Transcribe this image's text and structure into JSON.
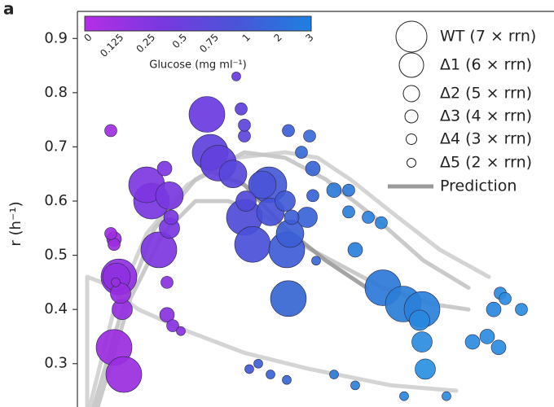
{
  "chart_data": {
    "type": "scatter",
    "panel_label": "a",
    "y_label": "r (h⁻¹)",
    "xlim": [
      0,
      585
    ],
    "ylim": [
      0.22,
      0.95
    ],
    "yticks": [
      0.3,
      0.4,
      0.5,
      0.6,
      0.7,
      0.8,
      0.9
    ],
    "colorbar": {
      "label": "Glucose (mg ml⁻¹)",
      "ticks": [
        "0",
        "0.125",
        "0.25",
        "0.5",
        "0.75",
        "1",
        "2",
        "3"
      ],
      "colors": [
        "#b42ee6",
        "#7a38e0",
        "#4a54d8",
        "#1e80e0"
      ]
    },
    "series": [
      {
        "name": "WT (7 × rrn)",
        "x": [
          159,
          163,
          91,
          100,
          205,
          215,
          257,
          259,
          375,
          400,
          423,
          51,
          45,
          57,
          235,
          85,
          173
        ],
        "values": [
          0.76,
          0.69,
          0.6,
          0.51,
          0.57,
          0.52,
          0.51,
          0.42,
          0.44,
          0.41,
          0.4,
          0.46,
          0.33,
          0.28,
          0.63,
          0.63,
          0.67
        ],
        "colors": [
          "#6a3ae0",
          "#5e40dc",
          "#7a36e0",
          "#7d35e0",
          "#4f4bd8",
          "#4a50d8",
          "#3f5cd6",
          "#3566d0",
          "#2e78d8",
          "#2a7ed8",
          "#2a80da",
          "#9030e0",
          "#9a2ce0",
          "#9a2ce0",
          "#445ad8",
          "#7e36e0",
          "#6240dc"
        ]
      },
      {
        "name": "Δ1 (6 × rrn)",
        "x": [
          191,
          113,
          227,
          261,
          48,
          237
        ],
        "values": [
          0.65,
          0.61,
          0.63,
          0.54,
          0.46,
          0.58
        ],
        "colors": [
          "#5846da",
          "#7838e0",
          "#4a54d8",
          "#3c60d6",
          "#8e30e0",
          "#4650d8"
        ]
      },
      {
        "name": "Δ2 (5 × rrn)",
        "x": [
          113,
          55,
          207,
          282,
          420,
          423,
          427,
          255,
          53
        ],
        "values": [
          0.55,
          0.4,
          0.6,
          0.57,
          0.38,
          0.34,
          0.29,
          0.6,
          0.43
        ],
        "colors": [
          "#7a36e0",
          "#942ee0",
          "#5049d8",
          "#3a64d6",
          "#2888dc",
          "#2a8ce0",
          "#2890e0",
          "#405ad6",
          "#962ce0"
        ]
      },
      {
        "name": "Δ3 (4 × rrn)",
        "x": [
          107,
          263,
          289,
          315,
          485,
          503,
          517,
          511,
          341,
          115,
          110,
          45
        ],
        "values": [
          0.66,
          0.57,
          0.66,
          0.62,
          0.34,
          0.35,
          0.33,
          0.4,
          0.51,
          0.57,
          0.39,
          0.53
        ],
        "colors": [
          "#7e36e0",
          "#3e5ed6",
          "#3a66d6",
          "#2e7ad8",
          "#2a8ce0",
          "#2a8ce0",
          "#2a8ce0",
          "#2a88dc",
          "#2a80dc",
          "#7a36e0",
          "#8a32e0",
          "#9c2ce0"
        ]
      },
      {
        "name": "Δ4 (3 × rrn)",
        "x": [
          205,
          201,
          285,
          275,
          289,
          333,
          333,
          357,
          373,
          519,
          525,
          545,
          41,
          45,
          41,
          110,
          117,
          205,
          259
        ],
        "values": [
          0.72,
          0.77,
          0.72,
          0.69,
          0.61,
          0.62,
          0.58,
          0.57,
          0.56,
          0.43,
          0.42,
          0.4,
          0.73,
          0.52,
          0.54,
          0.45,
          0.37,
          0.74,
          0.73
        ],
        "colors": [
          "#5c44dc",
          "#6040dc",
          "#386ad6",
          "#386ad6",
          "#3a64d6",
          "#2e7ad8",
          "#2c80da",
          "#2c82dc",
          "#2c84dc",
          "#2a8ce0",
          "#2a8ce0",
          "#2a8ce0",
          "#a030e0",
          "#9c2ce0",
          "#9c2ce0",
          "#8a32e0",
          "#8832e0",
          "#5c44dc",
          "#3e5ed6"
        ]
      },
      {
        "name": "Δ5 (2 × rrn)",
        "x": [
          195,
          127,
          222,
          211,
          237,
          257,
          315,
          341,
          401,
          453,
          293,
          47
        ],
        "values": [
          0.83,
          0.36,
          0.3,
          0.29,
          0.28,
          0.27,
          0.28,
          0.26,
          0.24,
          0.24,
          0.49,
          0.45
        ],
        "colors": [
          "#6a3ae0",
          "#8a32e0",
          "#3e5ed6",
          "#4058d6",
          "#3a64d6",
          "#3a66d6",
          "#2e7ad8",
          "#2c80da",
          "#2a88dc",
          "#2a8ce0",
          "#3a68d6",
          "#9a2ce0"
        ]
      }
    ],
    "prediction": {
      "name": "Prediction",
      "color": "#9a9a9a",
      "curves": [
        {
          "color": "#cfcfcf",
          "x": [
            12,
            12,
            30,
            75,
            135,
            205,
            285,
            385,
            465
          ],
          "values": [
            0.22,
            0.46,
            0.45,
            0.4,
            0.36,
            0.32,
            0.29,
            0.26,
            0.25
          ]
        },
        {
          "color": "#cfcfcf",
          "x": [
            15,
            45,
            85,
            135,
            195,
            255,
            295,
            335,
            385,
            445,
            505
          ],
          "values": [
            0.22,
            0.4,
            0.54,
            0.63,
            0.68,
            0.69,
            0.68,
            0.64,
            0.58,
            0.51,
            0.46
          ]
        },
        {
          "color": "#c4c4c4",
          "x": [
            20,
            55,
            95,
            145,
            205,
            255,
            305,
            365,
            425,
            480
          ],
          "values": [
            0.22,
            0.4,
            0.55,
            0.64,
            0.69,
            0.68,
            0.64,
            0.57,
            0.49,
            0.44
          ]
        },
        {
          "color": "#c4c4c4",
          "x": [
            25,
            65,
            105,
            145,
            185,
            225,
            275,
            325,
            375,
            435,
            480
          ],
          "values": [
            0.22,
            0.42,
            0.54,
            0.6,
            0.6,
            0.58,
            0.52,
            0.48,
            0.44,
            0.41,
            0.4
          ]
        },
        {
          "color": "#9a9a9a",
          "x": [
            155,
            205,
            255,
            305,
            355
          ],
          "values": [
            0.66,
            0.63,
            0.55,
            0.49,
            0.44
          ]
        }
      ]
    }
  }
}
